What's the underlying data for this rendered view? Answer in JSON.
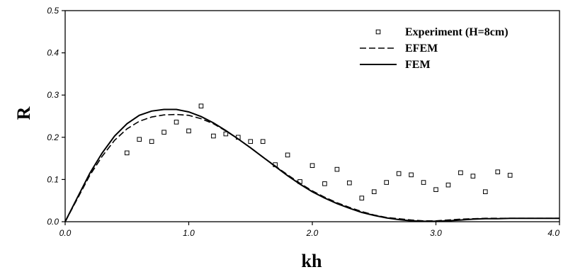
{
  "chart_data": {
    "type": "line",
    "xlabel": "kh",
    "ylabel": "R",
    "xlim": [
      0.0,
      4.0
    ],
    "ylim": [
      0.0,
      0.5
    ],
    "x_ticks": [
      "0.0",
      "1.0",
      "2.0",
      "3.0",
      "4.0"
    ],
    "y_ticks": [
      "0.0",
      "0.1",
      "0.2",
      "0.3",
      "0.4",
      "0.5"
    ],
    "grid": false,
    "legend_position": "top-right",
    "series": [
      {
        "name": "Experiment (H=8cm)",
        "kind": "scatter",
        "marker": "hollow-square",
        "x": [
          0.5,
          0.6,
          0.7,
          0.8,
          0.9,
          1.0,
          1.1,
          1.2,
          1.3,
          1.4,
          1.5,
          1.6,
          1.7,
          1.8,
          1.9,
          2.0,
          2.1,
          2.2,
          2.3,
          2.4,
          2.5,
          2.6,
          2.7,
          2.8,
          2.9,
          3.0,
          3.1,
          3.2,
          3.3,
          3.4,
          3.5,
          3.6
        ],
        "y": [
          0.163,
          0.195,
          0.19,
          0.212,
          0.236,
          0.215,
          0.274,
          0.203,
          0.208,
          0.2,
          0.19,
          0.19,
          0.135,
          0.158,
          0.095,
          0.133,
          0.09,
          0.124,
          0.092,
          0.056,
          0.071,
          0.093,
          0.114,
          0.111,
          0.093,
          0.076,
          0.087,
          0.116,
          0.108,
          0.071,
          0.118,
          0.11
        ]
      },
      {
        "name": "EFEM",
        "kind": "line",
        "dash": "dashed",
        "x": [
          0.0,
          0.1,
          0.2,
          0.3,
          0.4,
          0.5,
          0.6,
          0.7,
          0.8,
          0.9,
          1.0,
          1.1,
          1.2,
          1.3,
          1.4,
          1.5,
          1.6,
          1.7,
          1.8,
          1.9,
          2.0,
          2.1,
          2.2,
          2.3,
          2.4,
          2.5,
          2.6,
          2.7,
          2.8,
          2.9,
          3.0,
          3.1,
          3.2,
          3.3,
          3.4,
          3.5,
          3.6,
          3.7,
          3.8,
          3.9,
          4.0
        ],
        "y": [
          0.0,
          0.055,
          0.11,
          0.155,
          0.193,
          0.22,
          0.238,
          0.248,
          0.253,
          0.254,
          0.252,
          0.244,
          0.232,
          0.215,
          0.196,
          0.175,
          0.153,
          0.132,
          0.111,
          0.091,
          0.073,
          0.058,
          0.045,
          0.034,
          0.024,
          0.016,
          0.01,
          0.007,
          0.004,
          0.002,
          0.002,
          0.004,
          0.006,
          0.007,
          0.008,
          0.008,
          0.008,
          0.008,
          0.008,
          0.008,
          0.008
        ]
      },
      {
        "name": "FEM",
        "kind": "line",
        "dash": "solid",
        "x": [
          0.0,
          0.1,
          0.2,
          0.3,
          0.4,
          0.5,
          0.6,
          0.7,
          0.8,
          0.9,
          1.0,
          1.1,
          1.2,
          1.3,
          1.4,
          1.5,
          1.6,
          1.7,
          1.8,
          1.9,
          2.0,
          2.1,
          2.2,
          2.3,
          2.4,
          2.5,
          2.6,
          2.7,
          2.8,
          2.9,
          3.0,
          3.1,
          3.2,
          3.3,
          3.4,
          3.5,
          3.6,
          3.7,
          3.8,
          3.9,
          4.0
        ],
        "y": [
          0.0,
          0.058,
          0.115,
          0.163,
          0.203,
          0.232,
          0.252,
          0.262,
          0.266,
          0.266,
          0.26,
          0.249,
          0.234,
          0.216,
          0.196,
          0.175,
          0.153,
          0.131,
          0.109,
          0.089,
          0.071,
          0.056,
          0.043,
          0.032,
          0.022,
          0.015,
          0.009,
          0.005,
          0.002,
          0.001,
          0.001,
          0.002,
          0.004,
          0.006,
          0.007,
          0.007,
          0.008,
          0.008,
          0.008,
          0.008,
          0.008
        ]
      }
    ]
  }
}
